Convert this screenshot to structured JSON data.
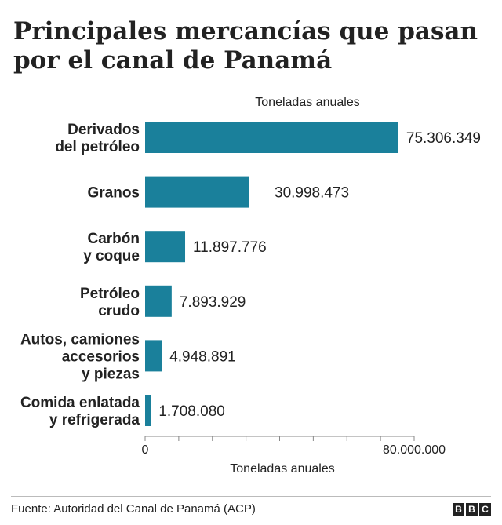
{
  "title_lines": [
    "Principales mercancías que pasan",
    "por el canal de Panamá"
  ],
  "source": "Fuente: Autoridad del Canal de Panamá (ACP)",
  "logo": [
    "B",
    "B",
    "C"
  ],
  "colors": {
    "bar": "#1a809b",
    "text": "#222222",
    "axis": "#888888"
  },
  "chart_data": {
    "type": "bar",
    "orientation": "horizontal",
    "title": "Principales mercancías que pasan por el canal de Panamá",
    "top_label": "Toneladas anuales",
    "xlabel": "Toneladas anuales",
    "xlim": [
      0,
      80000000
    ],
    "x_ticks": [
      0,
      10000000,
      20000000,
      30000000,
      40000000,
      50000000,
      60000000,
      70000000,
      80000000
    ],
    "x_tick_labels": [
      "0",
      "",
      "",
      "",
      "",
      "",
      "",
      "",
      "80.000.000"
    ],
    "categories": [
      [
        "Derivados",
        "del petróleo"
      ],
      [
        "Granos"
      ],
      [
        "Carbón",
        "y coque"
      ],
      [
        "Petróleo",
        "crudo"
      ],
      [
        "Autos, camiones",
        "accesorios",
        "y piezas"
      ],
      [
        "Comida enlatada",
        "y refrigerada"
      ]
    ],
    "values": [
      75306349,
      30998473,
      11897776,
      7893929,
      4948891,
      1708080
    ],
    "value_labels": [
      "75.306.349",
      "30.998.473",
      "11.897.776",
      "7.893.929",
      "4.948.891",
      "1.708.080"
    ],
    "grid": false
  }
}
